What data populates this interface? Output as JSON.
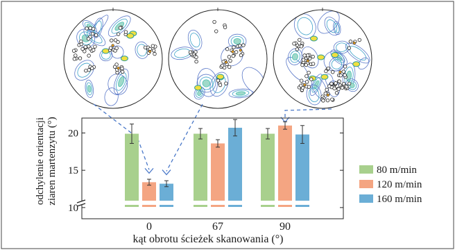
{
  "chart_data": {
    "type": "bar",
    "ylabel_lines": [
      "odchylenie orientacji",
      "ziaren martenzytu (°)"
    ],
    "xlabel": "kąt obrotu ścieżek skanowania  (°)",
    "categories": [
      "0",
      "67",
      "90"
    ],
    "ylim": [
      8.5,
      22
    ],
    "axis_break": true,
    "yticks": [
      "10",
      "15",
      "20"
    ],
    "series": [
      {
        "name": "80 m/min",
        "color": "#a8d08d",
        "values": [
          19.9,
          19.9,
          19.9
        ],
        "errors": [
          1.3,
          0.7,
          0.7
        ]
      },
      {
        "name": "120 m/min",
        "color": "#f4a582",
        "values": [
          13.4,
          18.6,
          21.0
        ],
        "errors": [
          0.4,
          0.5,
          0.5
        ]
      },
      {
        "name": "160 m/min",
        "color": "#6baed6",
        "values": [
          13.2,
          20.7,
          19.8
        ],
        "errors": [
          0.4,
          1.1,
          1.2
        ]
      }
    ],
    "legend_position": "right"
  },
  "pole_figures": [
    {
      "name": "pole-figure-0"
    },
    {
      "name": "pole-figure-67"
    },
    {
      "name": "pole-figure-90"
    }
  ]
}
